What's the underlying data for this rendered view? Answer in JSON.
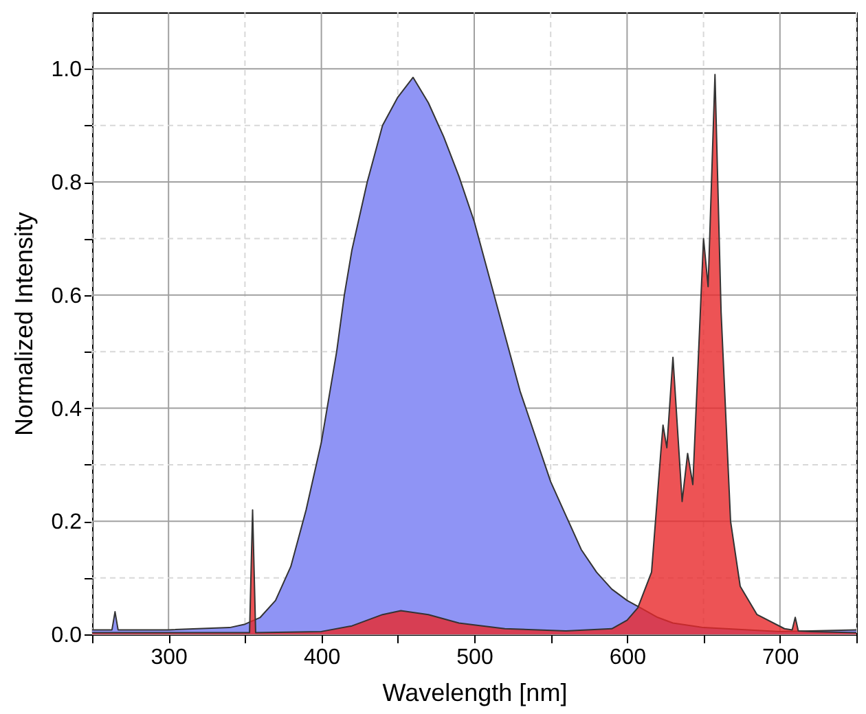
{
  "chart_data": {
    "type": "area",
    "xlabel": "Wavelength [nm]",
    "ylabel": "Normalized Intensity",
    "xlim": [
      250,
      750
    ],
    "ylim": [
      0,
      1.1
    ],
    "xticks": [
      {
        "value": 250,
        "label": null
      },
      300,
      {
        "value": 350,
        "label": null
      },
      400,
      {
        "value": 450,
        "label": null
      },
      500,
      {
        "value": 550,
        "label": null
      },
      600,
      {
        "value": 650,
        "label": null
      },
      700,
      {
        "value": 750,
        "label": null
      }
    ],
    "yticks": [
      {
        "value": 0,
        "label": "0.0"
      },
      {
        "value": 0.1,
        "label": null
      },
      0.2,
      {
        "value": 0.3,
        "label": null
      },
      0.4,
      {
        "value": 0.5,
        "label": null
      },
      0.6,
      {
        "value": 0.7,
        "label": null
      },
      0.8,
      {
        "value": 0.9,
        "label": null
      },
      {
        "value": 1,
        "label": "1.0"
      }
    ],
    "grid": true,
    "series": [
      {
        "color": "#8f94f5",
        "x": [
          250,
          263,
          265,
          267,
          300,
          340,
          350,
          360,
          370,
          380,
          390,
          400,
          405,
          410,
          415,
          420,
          430,
          440,
          450,
          460,
          470,
          480,
          490,
          500,
          510,
          520,
          530,
          540,
          550,
          560,
          570,
          580,
          590,
          600,
          610,
          620,
          630,
          650,
          700,
          750
        ],
        "values": [
          0.008,
          0.008,
          0.04,
          0.008,
          0.008,
          0.012,
          0.018,
          0.03,
          0.06,
          0.12,
          0.22,
          0.34,
          0.42,
          0.5,
          0.6,
          0.68,
          0.8,
          0.9,
          0.95,
          0.985,
          0.94,
          0.88,
          0.81,
          0.73,
          0.63,
          0.53,
          0.43,
          0.35,
          0.27,
          0.21,
          0.15,
          0.11,
          0.08,
          0.06,
          0.045,
          0.03,
          0.02,
          0.012,
          0.005,
          0.008
        ]
      },
      {
        "color": "#e8282a",
        "x": [
          250,
          353,
          355,
          357,
          400,
          420,
          440,
          452,
          470,
          490,
          520,
          560,
          590,
          600,
          607,
          616,
          622,
          623.5,
          626,
          630,
          636,
          639.6,
          643,
          650,
          653,
          657.5,
          661.5,
          667.7,
          674,
          685,
          703,
          708,
          710,
          712,
          720,
          750
        ],
        "values": [
          0.003,
          0.003,
          0.22,
          0.003,
          0.005,
          0.015,
          0.035,
          0.042,
          0.035,
          0.02,
          0.01,
          0.006,
          0.01,
          0.025,
          0.047,
          0.11,
          0.32,
          0.37,
          0.33,
          0.49,
          0.235,
          0.32,
          0.265,
          0.7,
          0.615,
          0.99,
          0.57,
          0.2,
          0.085,
          0.035,
          0.01,
          0.008,
          0.03,
          0.006,
          0.005,
          0.003
        ]
      }
    ]
  }
}
